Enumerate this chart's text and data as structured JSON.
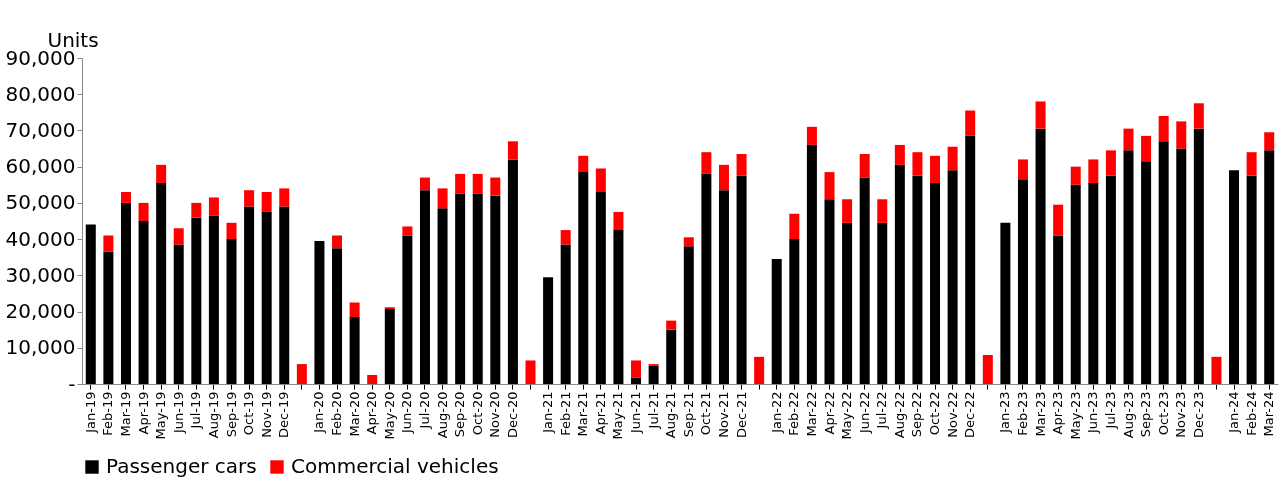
{
  "chart_data": {
    "type": "bar",
    "stacked": true,
    "ylabel": "Units",
    "legend": "bottom",
    "grid": false,
    "categories": [
      "Jan-19",
      "Feb-19",
      "Mar-19",
      "Apr-19",
      "May-19",
      "Jun-19",
      "Jul-19",
      "Aug-19",
      "Sep-19",
      "Oct-19",
      "Nov-19",
      "Dec-19",
      null,
      "Jan-20",
      "Feb-20",
      "Mar-20",
      "Apr-20",
      "May-20",
      "Jun-20",
      "Jul-20",
      "Aug-20",
      "Sep-20",
      "Oct-20",
      "Nov-20",
      "Dec-20",
      null,
      "Jan-21",
      "Feb-21",
      "Mar-21",
      "Apr-21",
      "May-21",
      "Jun-21",
      "Jul-21",
      "Aug-21",
      "Sep-21",
      "Oct-21",
      "Nov-21",
      "Dec-21",
      null,
      "Jan-22",
      "Feb-22",
      "Mar-22",
      "Apr-22",
      "May-22",
      "Jun-22",
      "Jul-22",
      "Aug-22",
      "Sep-22",
      "Oct-22",
      "Nov-22",
      "Dec-22",
      null,
      "Jan-23",
      "Feb-23",
      "Mar-23",
      "Apr-23",
      "May-23",
      "Jun-23",
      "Jul-23",
      "Aug-23",
      "Sep-23",
      "Oct-23",
      "Nov-23",
      "Dec-23",
      null,
      "Jan-24",
      "Feb-24",
      "Mar-24"
    ],
    "series": [
      {
        "name": "Passenger cars",
        "color": "#000000",
        "values": [
          44000,
          36500,
          50000,
          45000,
          55500,
          38500,
          46000,
          46500,
          40000,
          49000,
          47500,
          49000,
          0,
          39500,
          37500,
          18500,
          0,
          20700,
          41000,
          53500,
          48500,
          52500,
          52500,
          52000,
          62000,
          0,
          29500,
          38500,
          58500,
          53000,
          42500,
          1700,
          5000,
          15000,
          38000,
          58000,
          53500,
          57500,
          0,
          34500,
          40000,
          66000,
          51000,
          44500,
          57000,
          44500,
          60500,
          57500,
          55500,
          59000,
          68500,
          0,
          44500,
          56500,
          70500,
          41000,
          55000,
          55500,
          57500,
          64500,
          61500,
          67000,
          65000,
          70500,
          0,
          59000,
          57500,
          64500
        ]
      },
      {
        "name": "Commercial vehicles",
        "color": "#ff0000",
        "values": [
          0,
          4500,
          3000,
          5000,
          5000,
          4500,
          4000,
          5000,
          4500,
          4500,
          5500,
          5000,
          5500,
          0,
          3500,
          4000,
          2500,
          500,
          2500,
          3500,
          5500,
          5500,
          5500,
          5000,
          5000,
          6500,
          0,
          4000,
          4500,
          6500,
          5000,
          4800,
          500,
          2500,
          2500,
          6000,
          7000,
          6000,
          7500,
          0,
          7000,
          5000,
          7500,
          6500,
          6500,
          6500,
          5500,
          6500,
          7500,
          6500,
          7000,
          8000,
          0,
          5500,
          7500,
          8500,
          5000,
          6500,
          7000,
          6000,
          7000,
          7000,
          7500,
          7000,
          7500,
          0,
          6500,
          5000
        ]
      }
    ],
    "ylim": [
      0,
      90000
    ],
    "yticks": [
      {
        "value": 0,
        "label": "-"
      },
      {
        "value": 10000,
        "label": "10,000"
      },
      {
        "value": 20000,
        "label": "20,000"
      },
      {
        "value": 30000,
        "label": "30,000"
      },
      {
        "value": 40000,
        "label": "40,000"
      },
      {
        "value": 50000,
        "label": "50,000"
      },
      {
        "value": 60000,
        "label": "60,000"
      },
      {
        "value": 70000,
        "label": "70,000"
      },
      {
        "value": 80000,
        "label": "80,000"
      },
      {
        "value": 90000,
        "label": "90,000"
      }
    ]
  }
}
